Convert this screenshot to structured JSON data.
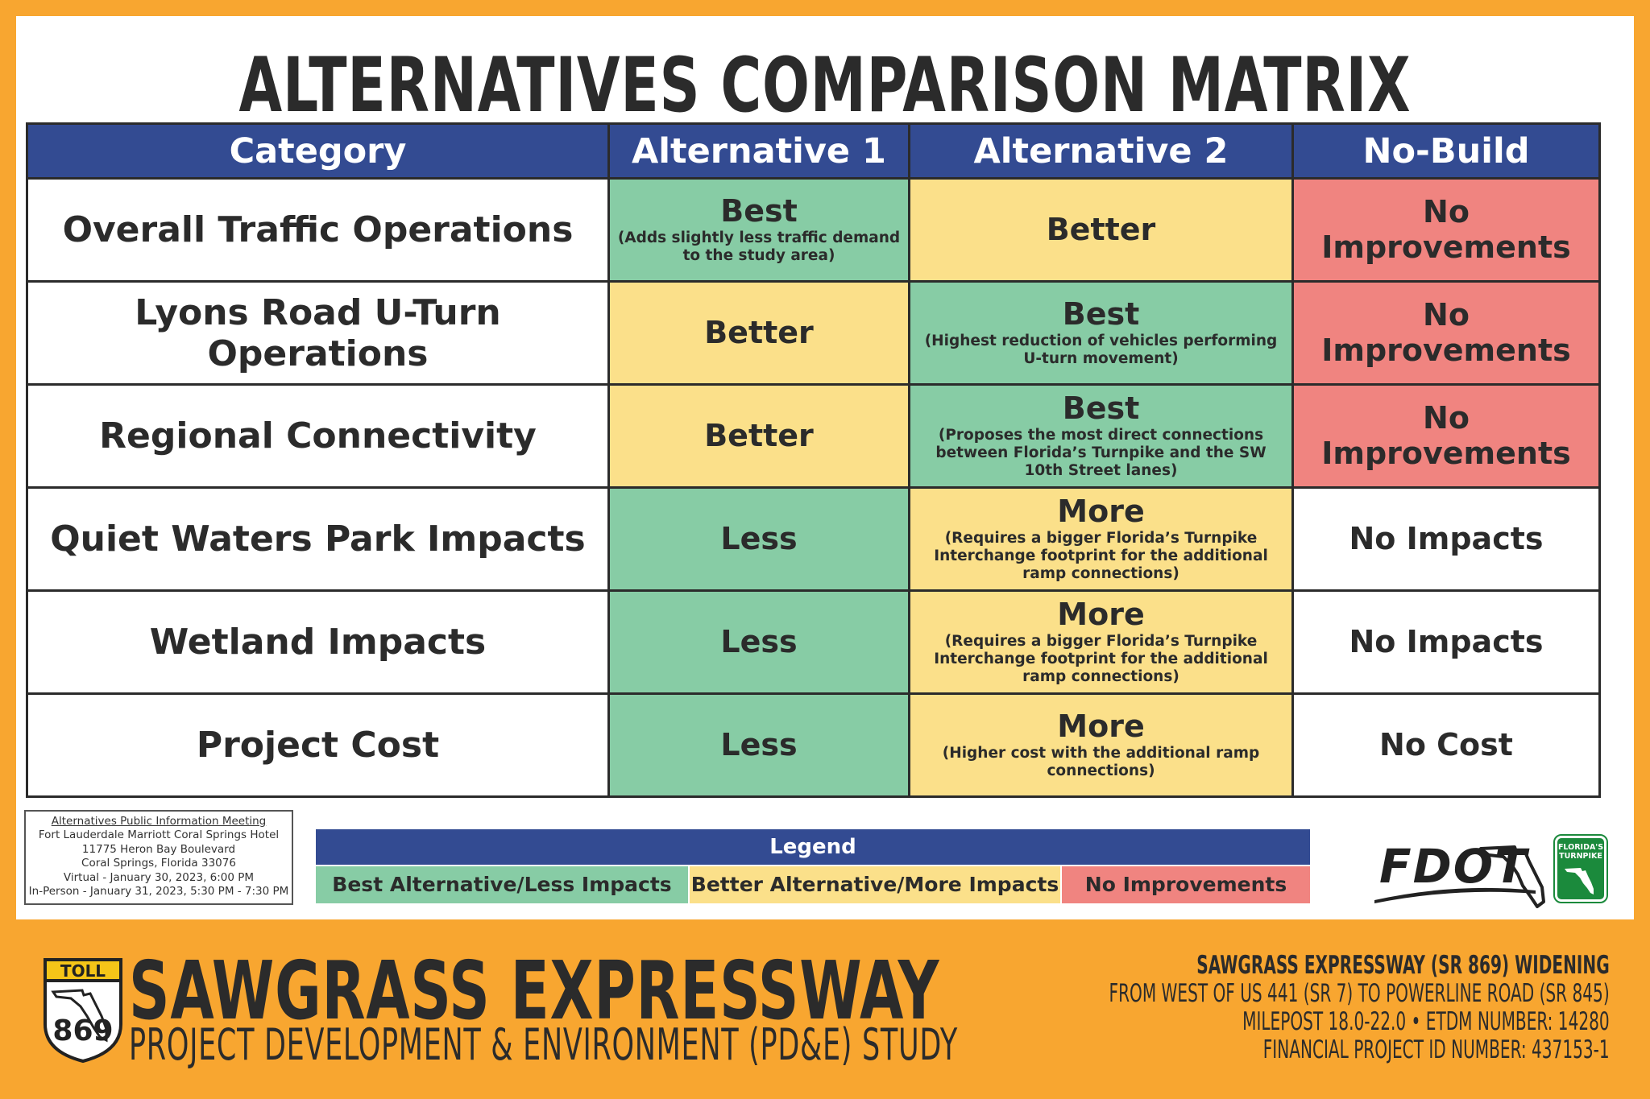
{
  "title": "ALTERNATIVES COMPARISON MATRIX",
  "colors": {
    "header_blue": "#334b92",
    "green": "#87cca5",
    "yellow": "#fbe08a",
    "red": "#f08480",
    "border_orange": "#f8a630"
  },
  "table": {
    "headers": [
      "Category",
      "Alternative 1",
      "Alternative 2",
      "No-Build"
    ],
    "rows": [
      {
        "category": "Overall Traffic Operations",
        "alt1": {
          "rating": "Best",
          "note": "(Adds slightly less traffic demand to the study area)"
        },
        "alt2": {
          "rating": "Better",
          "note": ""
        },
        "nobuild": {
          "rating": "No Improvements"
        }
      },
      {
        "category": "Lyons Road U-Turn Operations",
        "alt1": {
          "rating": "Better",
          "note": ""
        },
        "alt2": {
          "rating": "Best",
          "note": "(Highest reduction of vehicles performing U-turn movement)"
        },
        "nobuild": {
          "rating": "No Improvements"
        }
      },
      {
        "category": "Regional Connectivity",
        "alt1": {
          "rating": "Better",
          "note": ""
        },
        "alt2": {
          "rating": "Best",
          "note": "(Proposes the most direct connections between Florida’s Turnpike and the SW 10th Street lanes)"
        },
        "nobuild": {
          "rating": "No Improvements"
        }
      },
      {
        "category": "Quiet Waters Park Impacts",
        "alt1": {
          "rating": "Less",
          "note": ""
        },
        "alt2": {
          "rating": "More",
          "note": "(Requires a bigger Florida’s Turnpike Interchange footprint for the additional ramp connections)"
        },
        "nobuild": {
          "rating": "No Impacts"
        }
      },
      {
        "category": "Wetland Impacts",
        "alt1": {
          "rating": "Less",
          "note": ""
        },
        "alt2": {
          "rating": "More",
          "note": "(Requires a bigger Florida’s Turnpike Interchange footprint for the additional ramp connections)"
        },
        "nobuild": {
          "rating": "No Impacts"
        }
      },
      {
        "category": "Project Cost",
        "alt1": {
          "rating": "Less",
          "note": ""
        },
        "alt2": {
          "rating": "More",
          "note": "(Higher cost with the additional ramp connections)"
        },
        "nobuild": {
          "rating": "No Cost"
        }
      }
    ]
  },
  "meeting": {
    "heading": "Alternatives Public Information Meeting",
    "line1": "Fort Lauderdale Marriott Coral Springs Hotel",
    "line2": "11775 Heron Bay Boulevard",
    "line3": "Coral Springs, Florida 33076",
    "line4": "Virtual - January 30, 2023, 6:00 PM",
    "line5": "In-Person - January 31, 2023, 5:30 PM - 7:30 PM"
  },
  "legend": {
    "title": "Legend",
    "green_label": "Best Alternative/Less Impacts",
    "yellow_label": "Better Alternative/More Impacts",
    "red_label": "No Improvements"
  },
  "logos": {
    "fdot": "FDOT",
    "turnpike": "FLORIDA'S TURNPIKE",
    "toll": "TOLL",
    "route": "869"
  },
  "footer": {
    "name": "SAWGRASS EXPRESSWAY",
    "study": "PROJECT DEVELOPMENT & ENVIRONMENT (PD&E) STUDY",
    "info1": "SAWGRASS EXPRESSWAY (SR 869) WIDENING",
    "info2": "FROM WEST OF US 441 (SR 7) TO POWERLINE ROAD (SR 845)",
    "info3": "MILEPOST 18.0-22.0 • ETDM NUMBER: 14280",
    "info4": "FINANCIAL PROJECT ID NUMBER: 437153-1"
  }
}
